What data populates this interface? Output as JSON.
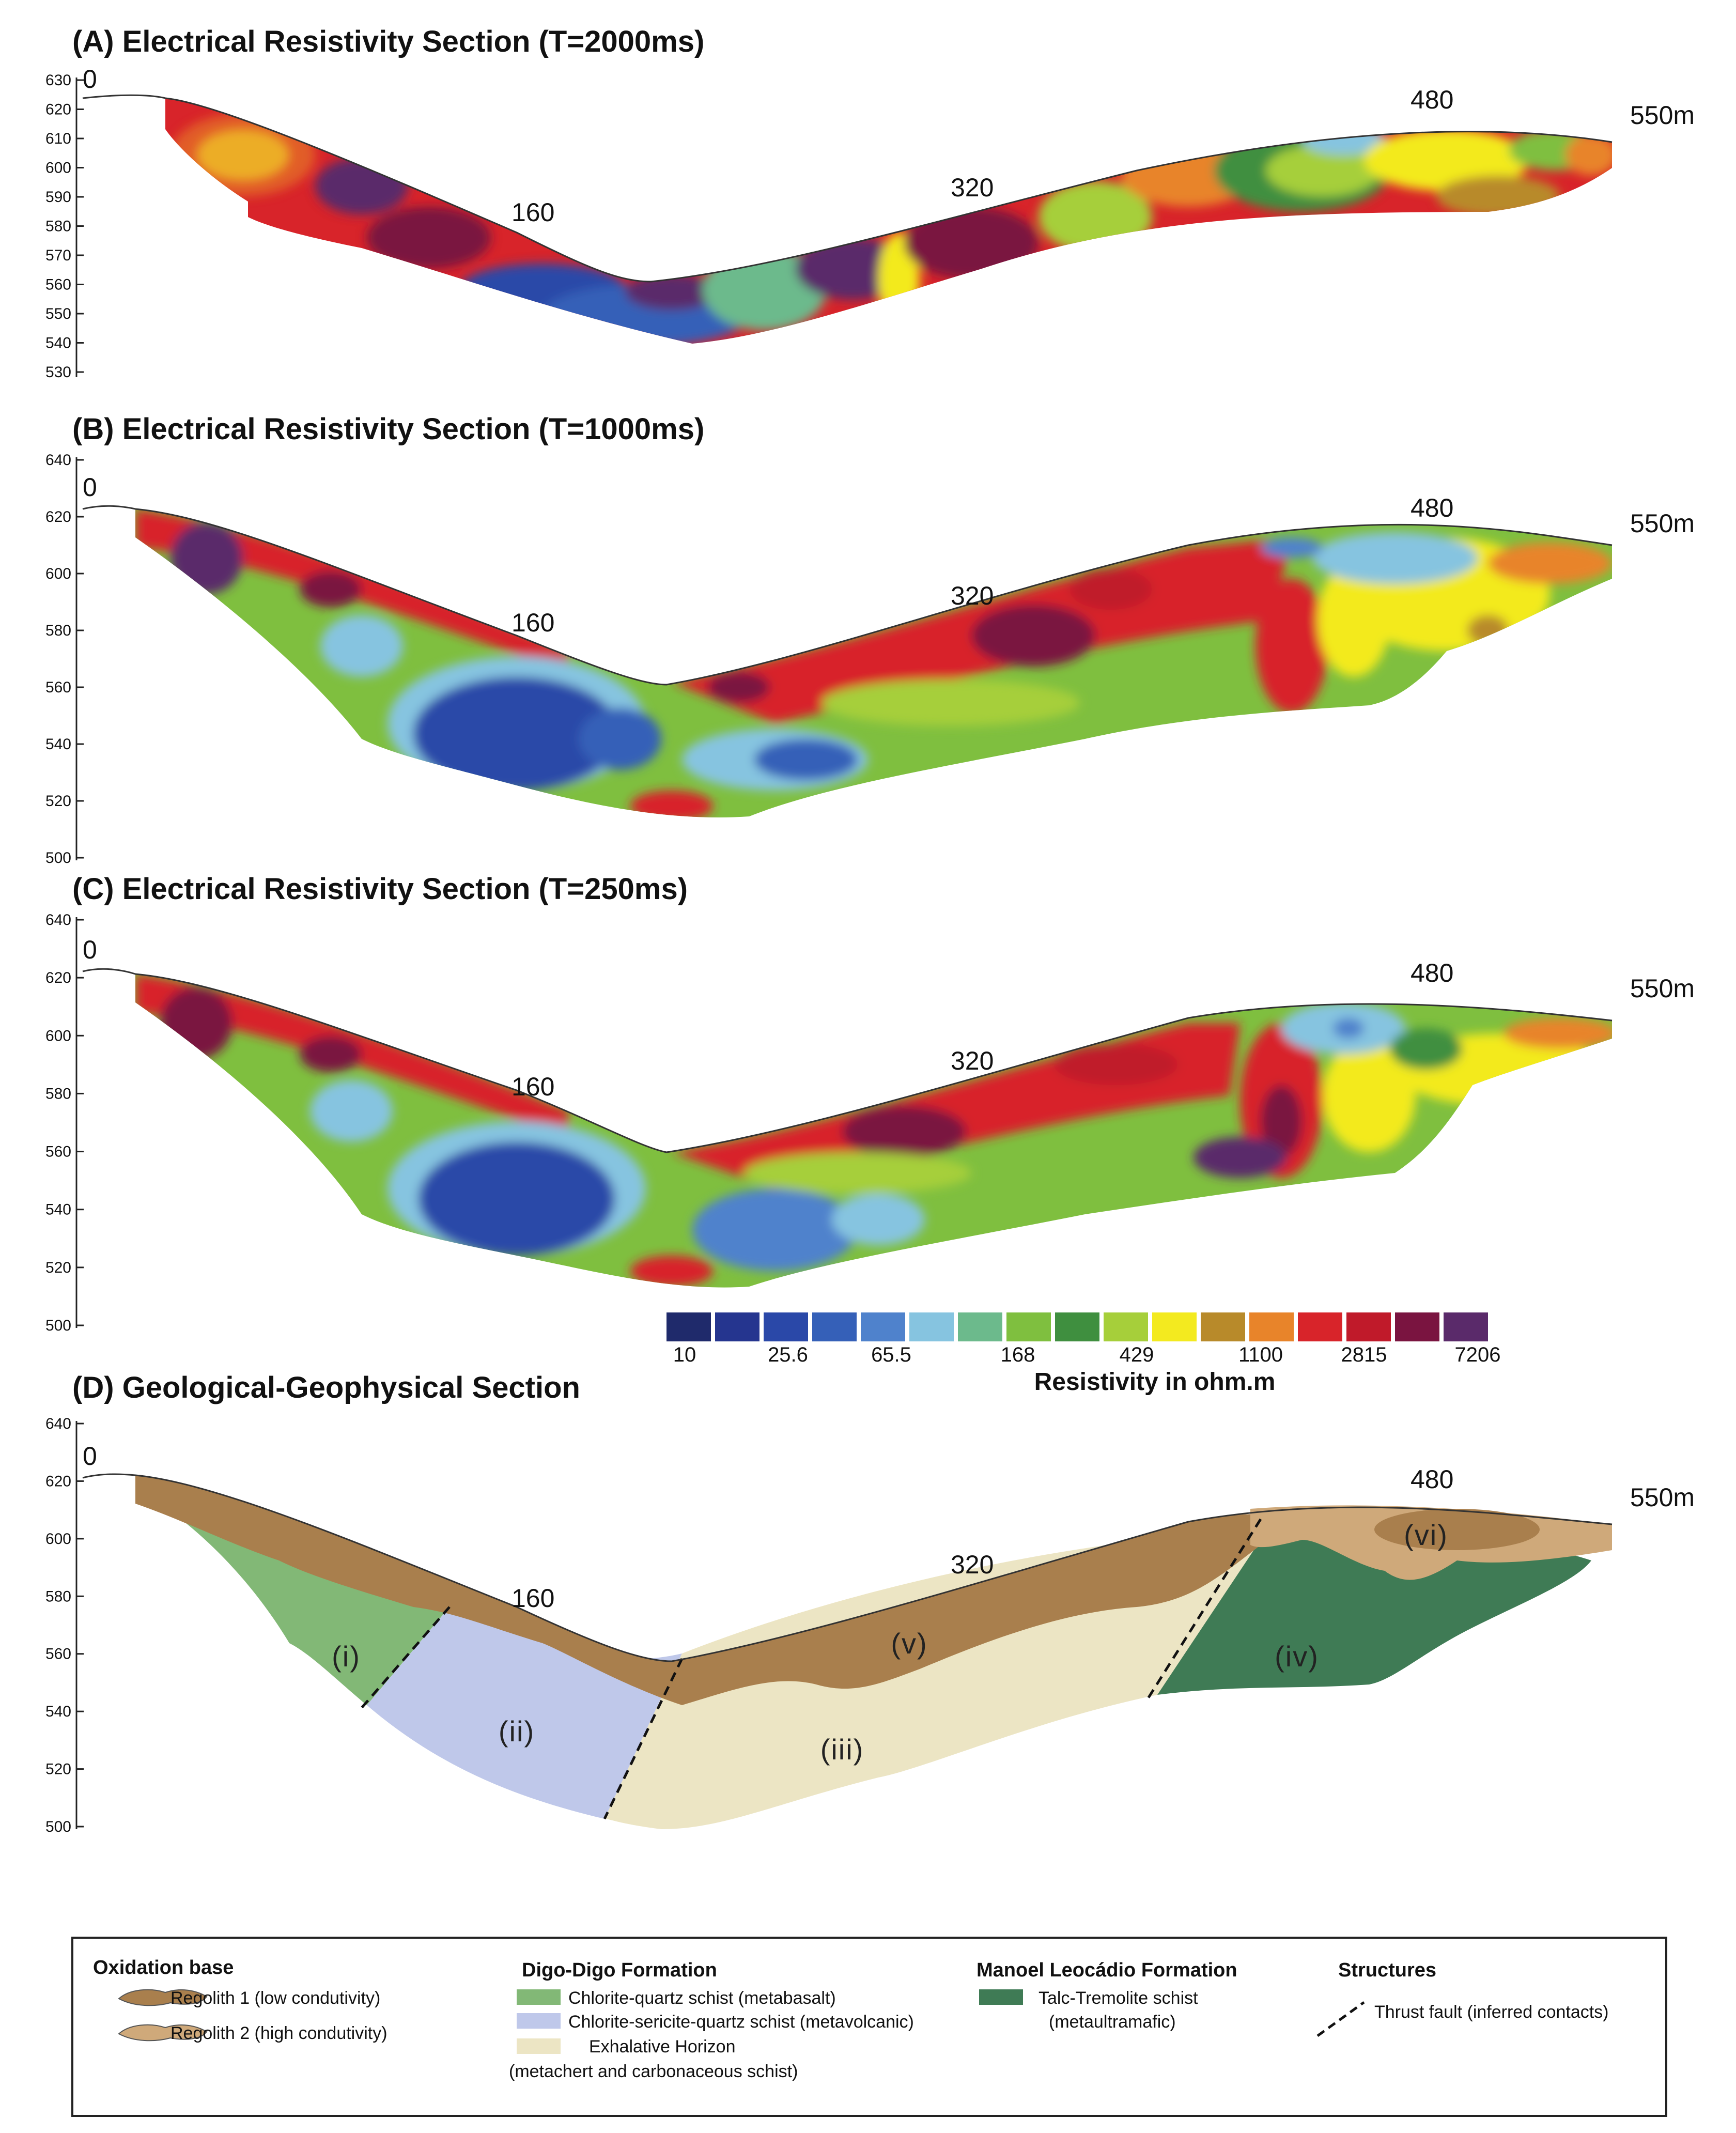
{
  "panels": [
    {
      "id": "A",
      "title": "(A) Electrical Resistivity Section (T=2000ms)",
      "elev_ticks": [
        "630",
        "620",
        "610",
        "600",
        "590",
        "580",
        "570",
        "560",
        "550",
        "540",
        "530"
      ],
      "distance_labels": [
        "0",
        "160",
        "320",
        "480",
        "550m"
      ]
    },
    {
      "id": "B",
      "title": "(B) Electrical Resistivity Section (T=1000ms)",
      "elev_ticks": [
        "640",
        "620",
        "600",
        "580",
        "560",
        "540",
        "520",
        "500"
      ],
      "distance_labels": [
        "0",
        "160",
        "320",
        "480",
        "550m"
      ]
    },
    {
      "id": "C",
      "title": "(C) Electrical Resistivity Section (T=250ms)",
      "elev_ticks": [
        "640",
        "620",
        "600",
        "580",
        "560",
        "540",
        "520",
        "500"
      ],
      "distance_labels": [
        "0",
        "160",
        "320",
        "480",
        "550m"
      ]
    },
    {
      "id": "D",
      "title": "(D) Geological-Geophysical Section",
      "elev_ticks": [
        "640",
        "620",
        "600",
        "580",
        "560",
        "540",
        "520",
        "500"
      ],
      "distance_labels": [
        "0",
        "160",
        "320",
        "480",
        "550m"
      ]
    }
  ],
  "colorbar": {
    "title": "Resistivity in ohm.m",
    "labels": [
      "10",
      "25.6",
      "65.5",
      "168",
      "429",
      "1100",
      "2815",
      "7206"
    ],
    "colors": [
      "#1f2a6b",
      "#25358f",
      "#2a48a8",
      "#3560b8",
      "#4f82cc",
      "#86c4e0",
      "#6cba8c",
      "#7fbf3f",
      "#3f8f3f",
      "#a6cf3a",
      "#f3ea1f",
      "#b88a2a",
      "#e8842a",
      "#d8242a",
      "#c01a2a",
      "#7a1440",
      "#5a2a6a"
    ]
  },
  "geology": {
    "units": [
      "(i)",
      "(ii)",
      "(iii)",
      "(iv)",
      "(v)",
      "(vi)"
    ],
    "colors": {
      "regolith1": "#a97f4d",
      "regolith2": "#cfa97a",
      "chlorite_quartz": "#82b876",
      "chlorite_sericite": "#bfc8ea",
      "exhalative": "#ece5c4",
      "talc_tremolite": "#3f7b55"
    }
  },
  "legend": {
    "oxidation": {
      "heading": "Oxidation base",
      "items": [
        "Regolith 1 (low condutivity)",
        "Regolith 2 (high condutivity)"
      ]
    },
    "digo": {
      "heading": "Digo-Digo Formation",
      "items": [
        "Chlorite-quartz schist (metabasalt)",
        "Chlorite-sericite-quartz schist (metavolcanic)",
        "Exhalative Horizon",
        "(metachert and carbonaceous schist)"
      ]
    },
    "manoel": {
      "heading": "Manoel Leocádio Formation",
      "items": [
        "Talc-Tremolite schist",
        "(metaultramafic)"
      ]
    },
    "structures": {
      "heading": "Structures",
      "items": [
        "Thrust fault (inferred contacts)"
      ]
    }
  }
}
